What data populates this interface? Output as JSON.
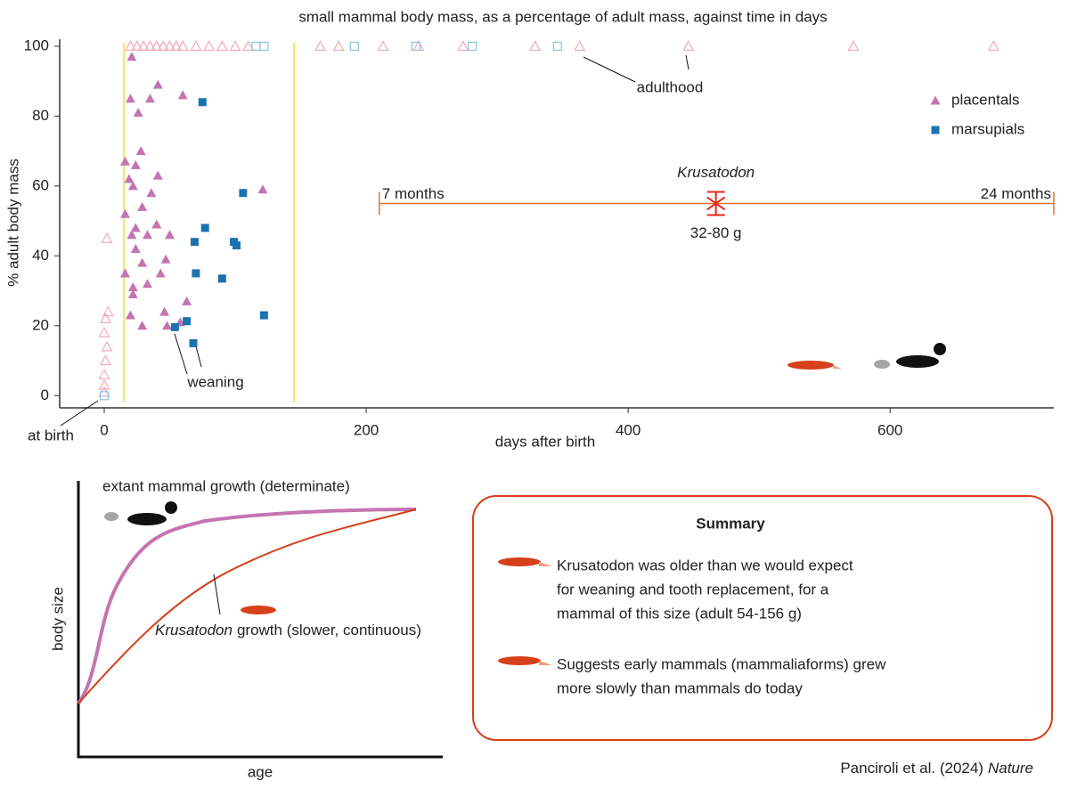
{
  "chart_data": {
    "type": "scatter",
    "title": "small mammal body mass, as a percentage of adult mass, against time in days",
    "x_label": "days after birth",
    "y_label": "% adult body mass",
    "xlim": [
      -34,
      725
    ],
    "ylim": [
      -3.5,
      101
    ],
    "xticks": [
      0,
      200,
      400,
      600
    ],
    "yticks": [
      0,
      20,
      40,
      60,
      80,
      100
    ],
    "legend": "upper right",
    "series": [
      {
        "name": "placentals",
        "color": "#c474b0",
        "marker": "triangle",
        "x": [
          21,
          20,
          35,
          26,
          60,
          41,
          28,
          24,
          41,
          22,
          29,
          24,
          21,
          33,
          50,
          24,
          29,
          47,
          16,
          22,
          43,
          22,
          20,
          29,
          46,
          58,
          63,
          121,
          16,
          19,
          36,
          40,
          16,
          33,
          48
        ],
        "values": [
          97,
          85,
          85,
          81,
          86,
          89,
          70,
          66,
          63,
          60,
          54,
          48,
          46,
          46,
          46,
          42,
          38,
          39,
          35,
          31,
          35,
          29,
          23,
          20,
          24,
          21,
          27,
          59,
          67,
          62,
          58,
          49,
          52,
          32,
          20
        ]
      },
      {
        "name": "marsupials",
        "color": "#1a72b0",
        "marker": "square",
        "x": [
          75,
          106,
          77,
          69,
          99,
          101,
          70,
          90,
          122,
          63,
          54,
          68
        ],
        "values": [
          84,
          58,
          48,
          44,
          44,
          43,
          35,
          33.5,
          23,
          21.3,
          19.6,
          15
        ]
      },
      {
        "color": "#f4aab8",
        "marker": "hollow-triangle",
        "x": [
          20,
          25,
          30,
          35,
          40,
          45,
          50,
          55,
          60,
          70,
          80,
          90,
          100,
          110,
          165,
          179,
          213,
          240,
          274,
          329,
          363,
          446,
          572,
          679,
          0,
          0,
          1,
          2,
          0,
          1,
          3,
          0,
          2
        ],
        "values": [
          100,
          100,
          100,
          100,
          100,
          100,
          100,
          100,
          100,
          100,
          100,
          100,
          100,
          100,
          100,
          100,
          100,
          100,
          100,
          100,
          100,
          100,
          100,
          100,
          3,
          6,
          10,
          14,
          18,
          22,
          24,
          1,
          45
        ]
      },
      {
        "color": "#8cc3e3",
        "marker": "hollow-square",
        "x": [
          116,
          122,
          191,
          238,
          281,
          346,
          0
        ],
        "values": [
          100,
          100,
          100,
          100,
          100,
          100,
          0
        ]
      }
    ],
    "phase_lines": {
      "color": "#f5d84a",
      "x": [
        15,
        145
      ]
    },
    "krusatodon": {
      "name": "Krusatodon",
      "color": "#e07430",
      "star_color": "#e8261c",
      "x_range": [
        210,
        725
      ],
      "x": 467,
      "value": 55,
      "range_labels": [
        "7 months",
        "24 months"
      ],
      "mass_label": "32-80 g"
    },
    "annotations": [
      "adulthood",
      "weaning",
      "at birth"
    ]
  },
  "diagram": {
    "extant_label": "extant mammal growth (determinate)",
    "krusatodon_label": {
      "italic": "Krusatodon",
      "text": "growth (slower, continuous)"
    },
    "x_label": "age",
    "y_label": "body size"
  },
  "summary": {
    "title": "Summary",
    "items": [
      [
        "Krusatodon was older than we would expect",
        "for weaning and tooth replacement, for a",
        "mammal of this size (adult 54-156 g)"
      ],
      [
        "Suggests early mammals (mammaliaforms) grew",
        "more slowly than mammals do today"
      ]
    ]
  },
  "citation": {
    "text": "Panciroli et al. (2024)",
    "italic": "Nature"
  }
}
